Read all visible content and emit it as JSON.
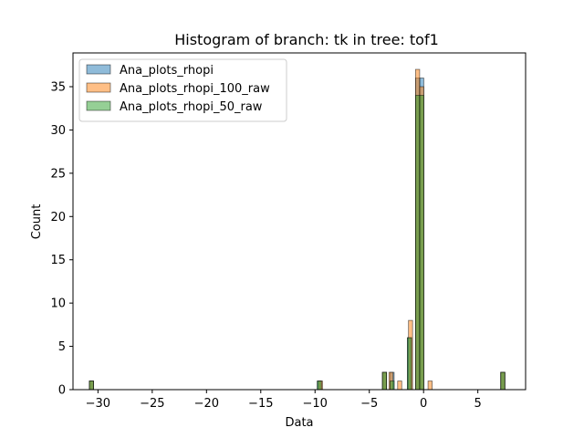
{
  "chart_data": {
    "type": "bar",
    "title": "Histogram of branch: tk in tree: tof1",
    "xlabel": "Data",
    "ylabel": "Count",
    "xlim": [
      -32.3,
      9.4
    ],
    "ylim": [
      0,
      38.9
    ],
    "xticks": [
      -30,
      -25,
      -20,
      -15,
      -10,
      -5,
      0,
      5
    ],
    "yticks": [
      0,
      5,
      10,
      15,
      20,
      25,
      30,
      35
    ],
    "grid": false,
    "legend_position": "top-left",
    "bin_width": 0.38,
    "series": [
      {
        "name": "Ana_plots_rhopi",
        "color": "#1f77b4",
        "bins": [
          {
            "x": -30.6,
            "count": 1
          },
          {
            "x": -9.6,
            "count": 1
          },
          {
            "x": -3.6,
            "count": 2
          },
          {
            "x": -2.9,
            "count": 2
          },
          {
            "x": -1.3,
            "count": 6
          },
          {
            "x": -0.55,
            "count": 36
          },
          {
            "x": -0.17,
            "count": 36
          },
          {
            "x": 7.3,
            "count": 2
          }
        ]
      },
      {
        "name": "Ana_plots_rhopi_100_raw",
        "color": "#ff7f0e",
        "bins": [
          {
            "x": -30.6,
            "count": 1
          },
          {
            "x": -9.5,
            "count": 1
          },
          {
            "x": -3.6,
            "count": 2
          },
          {
            "x": -3.0,
            "count": 2
          },
          {
            "x": -2.2,
            "count": 1
          },
          {
            "x": -1.2,
            "count": 8
          },
          {
            "x": -0.55,
            "count": 37
          },
          {
            "x": -0.17,
            "count": 35
          },
          {
            "x": 0.6,
            "count": 1
          },
          {
            "x": 7.3,
            "count": 2
          }
        ]
      },
      {
        "name": "Ana_plots_rhopi_50_raw",
        "color": "#2ca02c",
        "bins": [
          {
            "x": -30.6,
            "count": 1
          },
          {
            "x": -9.6,
            "count": 1
          },
          {
            "x": -3.6,
            "count": 2
          },
          {
            "x": -2.9,
            "count": 1
          },
          {
            "x": -1.3,
            "count": 6
          },
          {
            "x": -0.55,
            "count": 34
          },
          {
            "x": -0.17,
            "count": 34
          },
          {
            "x": 7.3,
            "count": 2
          }
        ]
      }
    ]
  }
}
